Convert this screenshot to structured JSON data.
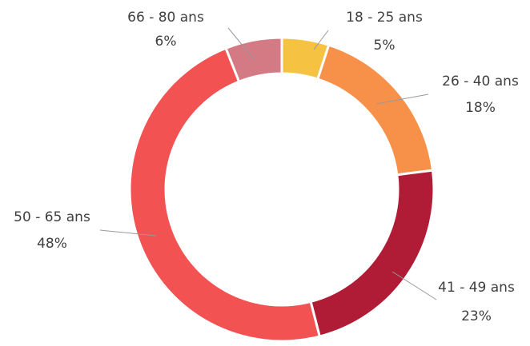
{
  "chart_data": {
    "type": "donut",
    "categories": [
      "18 - 25 ans",
      "26 - 40 ans",
      "41 - 49 ans",
      "50 - 65 ans",
      "66 - 80 ans"
    ],
    "values": [
      5,
      18,
      23,
      48,
      6
    ],
    "value_labels": [
      "5%",
      "18%",
      "23%",
      "48%",
      "6%"
    ],
    "colors": [
      "#f5c242",
      "#f79149",
      "#b01c35",
      "#f25252",
      "#d47a84"
    ]
  }
}
